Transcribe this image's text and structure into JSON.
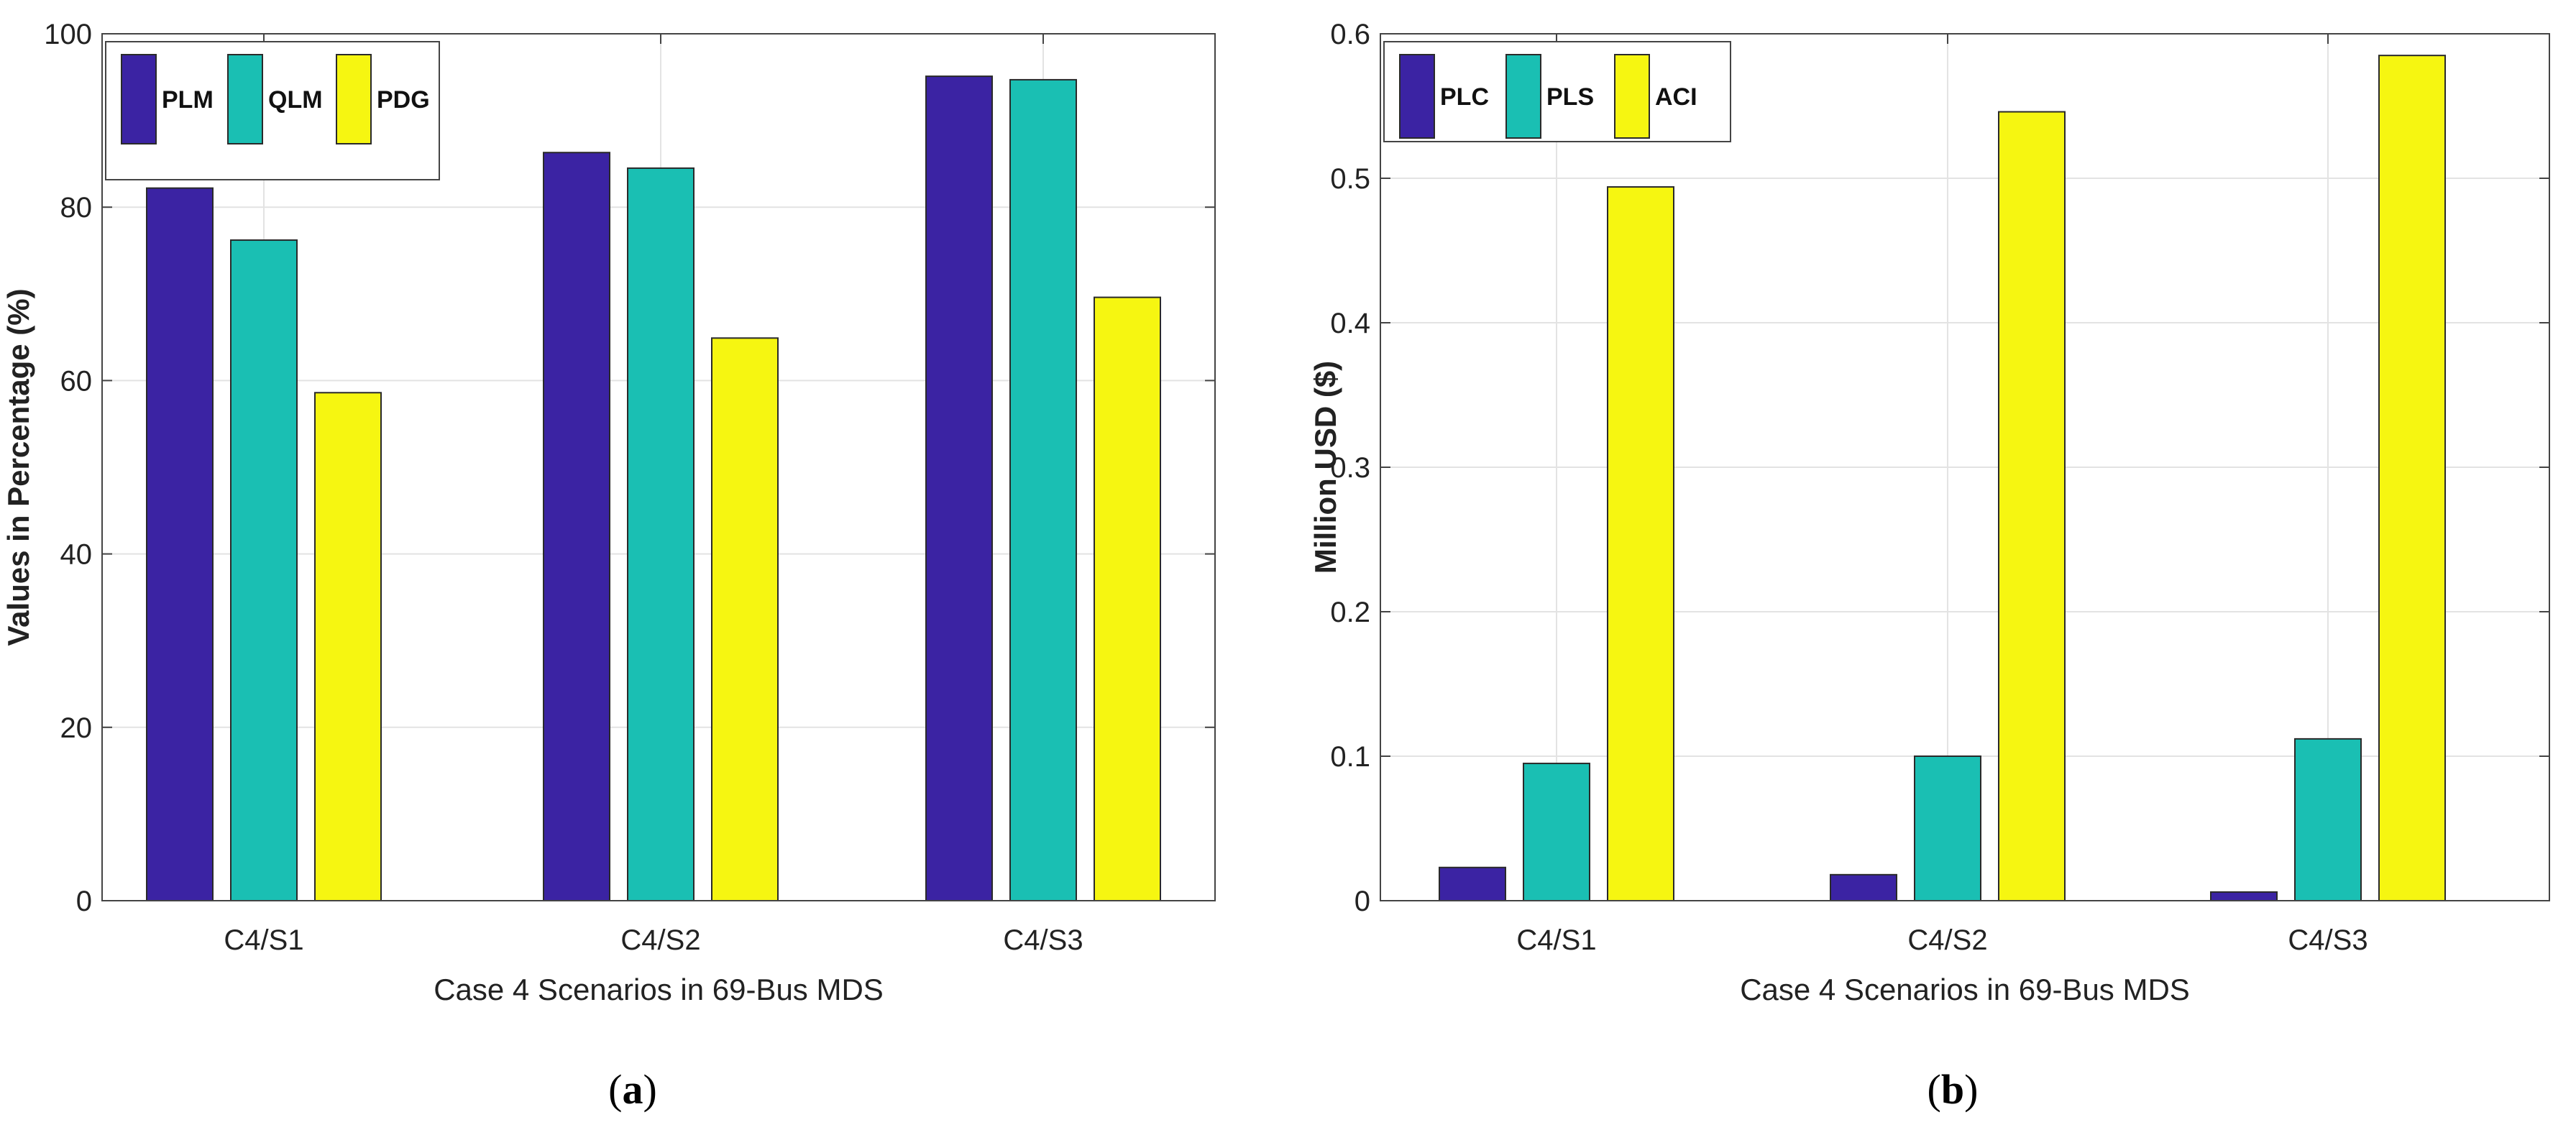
{
  "colors": {
    "series1": "#3b23a3",
    "series2": "#1abfb3",
    "series3": "#f6f611",
    "grid": "#e3e3e3",
    "axis": "#444444"
  },
  "chart_data": [
    {
      "type": "bar",
      "panel": "a",
      "caption_open": "(",
      "caption_letter": "a",
      "caption_close": ")",
      "categories": [
        "C4/S1",
        "C4/S2",
        "C4/S3"
      ],
      "series": [
        {
          "name": "PLM",
          "values": [
            82.2,
            86.3,
            95.1
          ]
        },
        {
          "name": "QLM",
          "values": [
            76.2,
            84.5,
            94.7
          ]
        },
        {
          "name": "PDG",
          "values": [
            58.6,
            64.9,
            69.6
          ]
        }
      ],
      "xlabel": "Case 4 Scenarios in 69-Bus MDS",
      "ylabel": "Values in Percentage (%)",
      "ylim": [
        0,
        100
      ],
      "yticks": [
        0,
        20,
        40,
        60,
        80,
        100
      ],
      "ytick_labels": [
        "0",
        "20",
        "40",
        "60",
        "80",
        "100"
      ],
      "grid": true,
      "legend_location": "top-left"
    },
    {
      "type": "bar",
      "panel": "b",
      "caption_open": "(",
      "caption_letter": "b",
      "caption_close": ")",
      "categories": [
        "C4/S1",
        "C4/S2",
        "C4/S3"
      ],
      "series": [
        {
          "name": "PLC",
          "values": [
            0.023,
            0.018,
            0.006
          ]
        },
        {
          "name": "PLS",
          "values": [
            0.095,
            0.1,
            0.112
          ]
        },
        {
          "name": "ACI",
          "values": [
            0.494,
            0.546,
            0.585
          ]
        }
      ],
      "xlabel": "Case 4 Scenarios in 69-Bus MDS",
      "ylabel": "Million USD ($)",
      "ylim": [
        0,
        0.6
      ],
      "yticks": [
        0,
        0.1,
        0.2,
        0.3,
        0.4,
        0.5,
        0.6
      ],
      "ytick_labels": [
        "0",
        "0.1",
        "0.2",
        "0.3",
        "0.4",
        "0.5",
        "0.6"
      ],
      "grid": true,
      "legend_location": "top-left"
    }
  ]
}
